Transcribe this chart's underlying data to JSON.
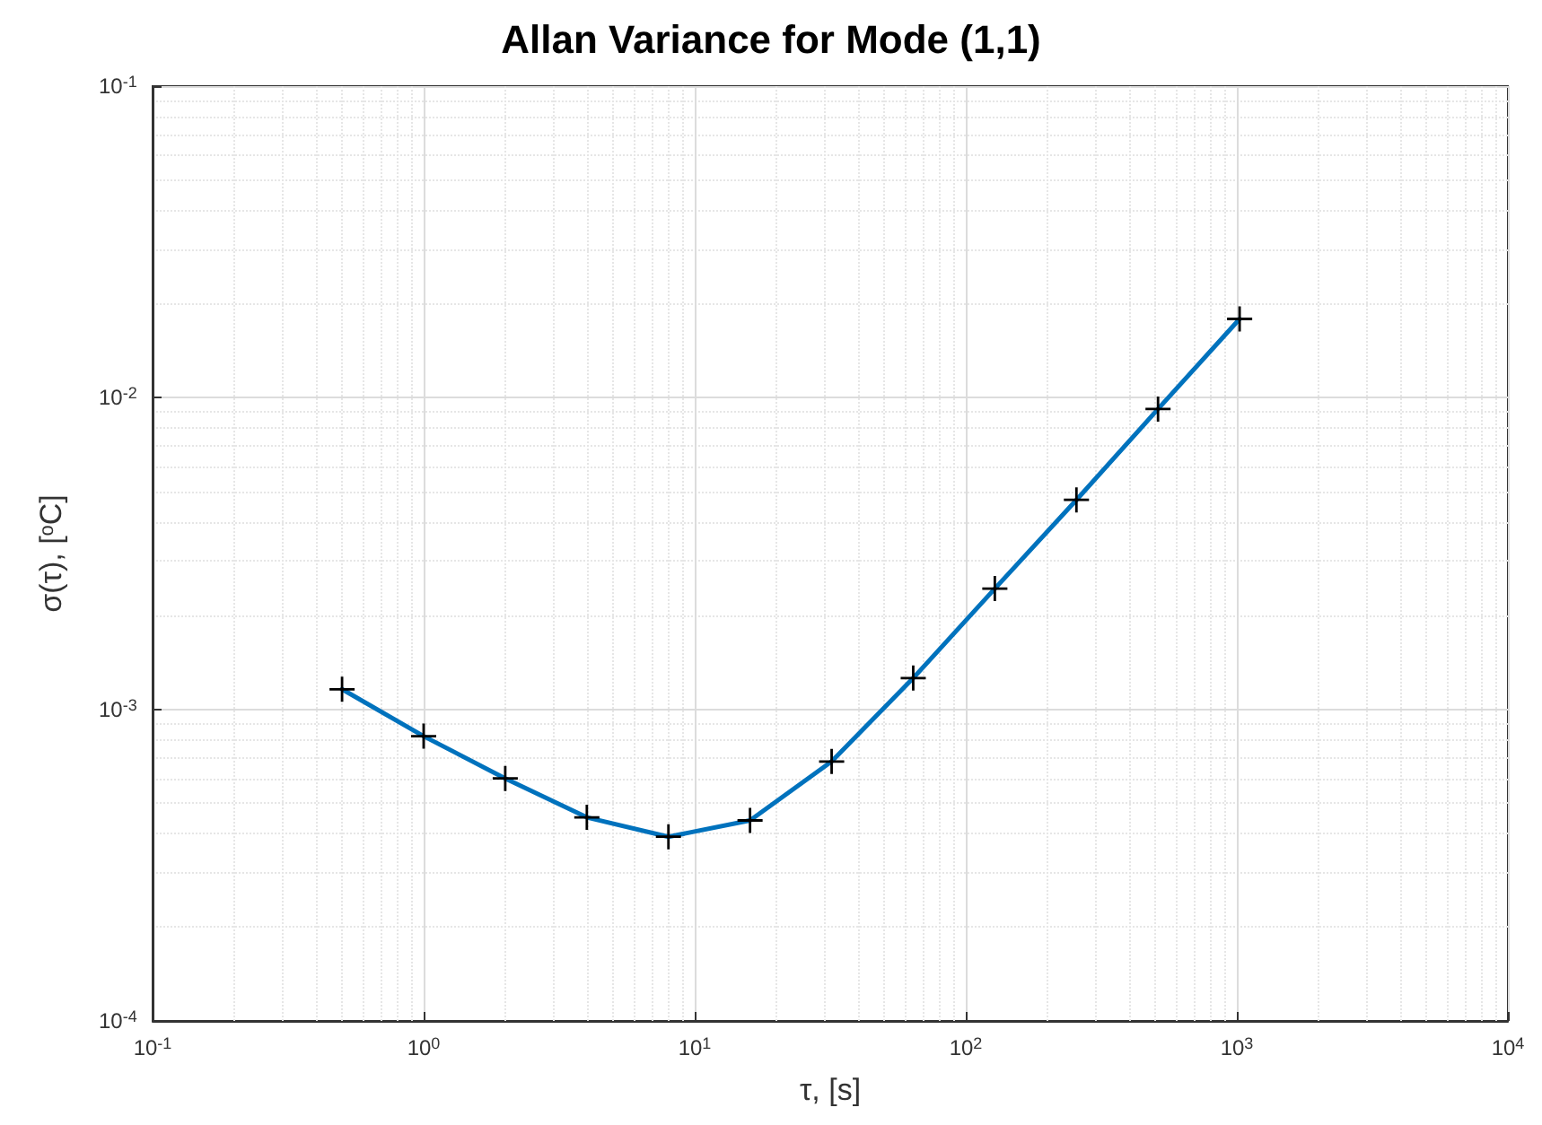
{
  "chart_data": {
    "type": "line",
    "title": "Allan Variance for Mode (1,1)",
    "xlabel": "τ, [s]",
    "ylabel": "σ(τ), [$^{o}$C]",
    "x": [
      0.5,
      1,
      2,
      4,
      8,
      16,
      32,
      64,
      128,
      256,
      512,
      1024
    ],
    "series": [
      {
        "color": "#0072bd",
        "values": [
          0.00116,
          0.00082,
          0.0006,
          0.00045,
          0.00039,
          0.00044,
          0.00068,
          0.00126,
          0.00244,
          0.0047,
          0.0092,
          0.0179
        ]
      }
    ],
    "log": "xy",
    "grid": true,
    "marker": "cross",
    "line_style": "solid",
    "xlim": [
      0.1,
      10000
    ],
    "ylim": [
      0.0001,
      0.1
    ],
    "xticks": [
      {
        "value": 0.1,
        "label": "10$^{-1}$"
      },
      {
        "value": 1,
        "label": "10$^{0}$"
      },
      {
        "value": 10,
        "label": "10$^{1}$"
      },
      {
        "value": 100,
        "label": "10$^{2}$"
      },
      {
        "value": 1000,
        "label": "10$^{3}$"
      },
      {
        "value": 10000,
        "label": "10$^{4}$"
      }
    ],
    "yticks": [
      {
        "value": 0.0001,
        "label": "10$^{-4}$"
      },
      {
        "value": 0.001,
        "label": "10$^{-3}$"
      },
      {
        "value": 0.01,
        "label": "10$^{-2}$"
      },
      {
        "value": 0.1,
        "label": "10$^{-1}$"
      }
    ]
  }
}
